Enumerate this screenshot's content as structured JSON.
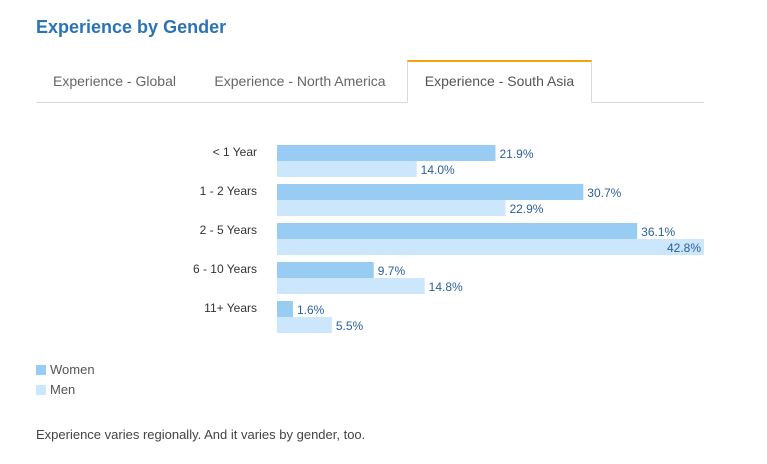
{
  "page": {
    "title": "Experience by Gender",
    "tabs": [
      {
        "label": "Experience - Global",
        "active": false
      },
      {
        "label": "Experience - North America",
        "active": false
      },
      {
        "label": "Experience - South Asia",
        "active": true
      }
    ],
    "footer": "Experience varies regionally. And it varies by gender, too."
  },
  "colors": {
    "women": "#99ccf3",
    "men": "#cce6fb",
    "value_label": "#2b5f9e",
    "accent": "#f0a30a",
    "title": "#2b73b5"
  },
  "chart_data": {
    "type": "bar",
    "orientation": "horizontal",
    "categories": [
      "< 1 Year",
      "1 - 2 Years",
      "2 - 5 Years",
      "6 - 10 Years",
      "11+ Years"
    ],
    "series": [
      {
        "name": "Women",
        "values": [
          21.9,
          30.7,
          36.1,
          9.7,
          1.6
        ],
        "labels": [
          "21.9%",
          "30.7%",
          "36.1%",
          "9.7%",
          "1.6%"
        ]
      },
      {
        "name": "Men",
        "values": [
          14.0,
          22.9,
          42.8,
          14.8,
          5.5
        ],
        "labels": [
          "14.0%",
          "22.9%",
          "42.8%",
          "14.8%",
          "5.5%"
        ]
      }
    ],
    "xlim": [
      0,
      42.8
    ],
    "unit": "%",
    "legend_position": "bottom-left",
    "grid": false
  }
}
